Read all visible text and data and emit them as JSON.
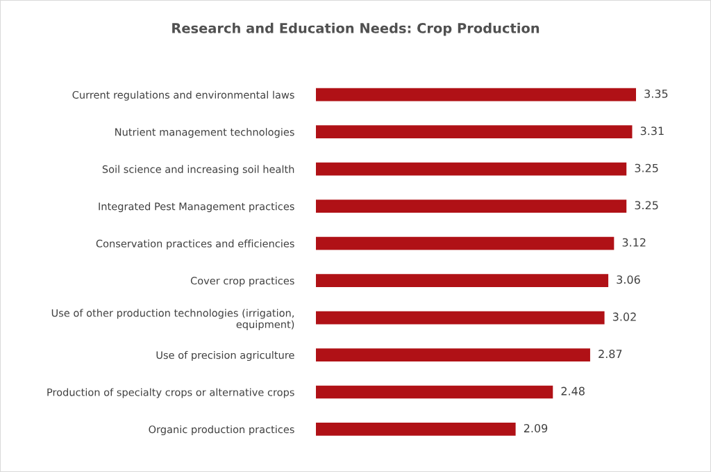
{
  "chart_data": {
    "type": "bar",
    "orientation": "horizontal",
    "title": "Research and Education Needs: Crop Production",
    "categories": [
      "Current regulations and environmental laws",
      "Nutrient management technologies",
      "Soil science and increasing soil health",
      "Integrated Pest Management practices",
      "Conservation practices and efficiencies",
      "Cover crop practices",
      "Use of other production technologies (irrigation,\nequipment)",
      "Use of precision agriculture",
      "Production of specialty crops or alternative crops",
      "Organic production practices"
    ],
    "values": [
      3.35,
      3.31,
      3.25,
      3.25,
      3.12,
      3.06,
      3.02,
      2.87,
      2.48,
      2.09
    ],
    "color": "#b01116",
    "data_labels": true,
    "grid": false,
    "legend": false
  }
}
